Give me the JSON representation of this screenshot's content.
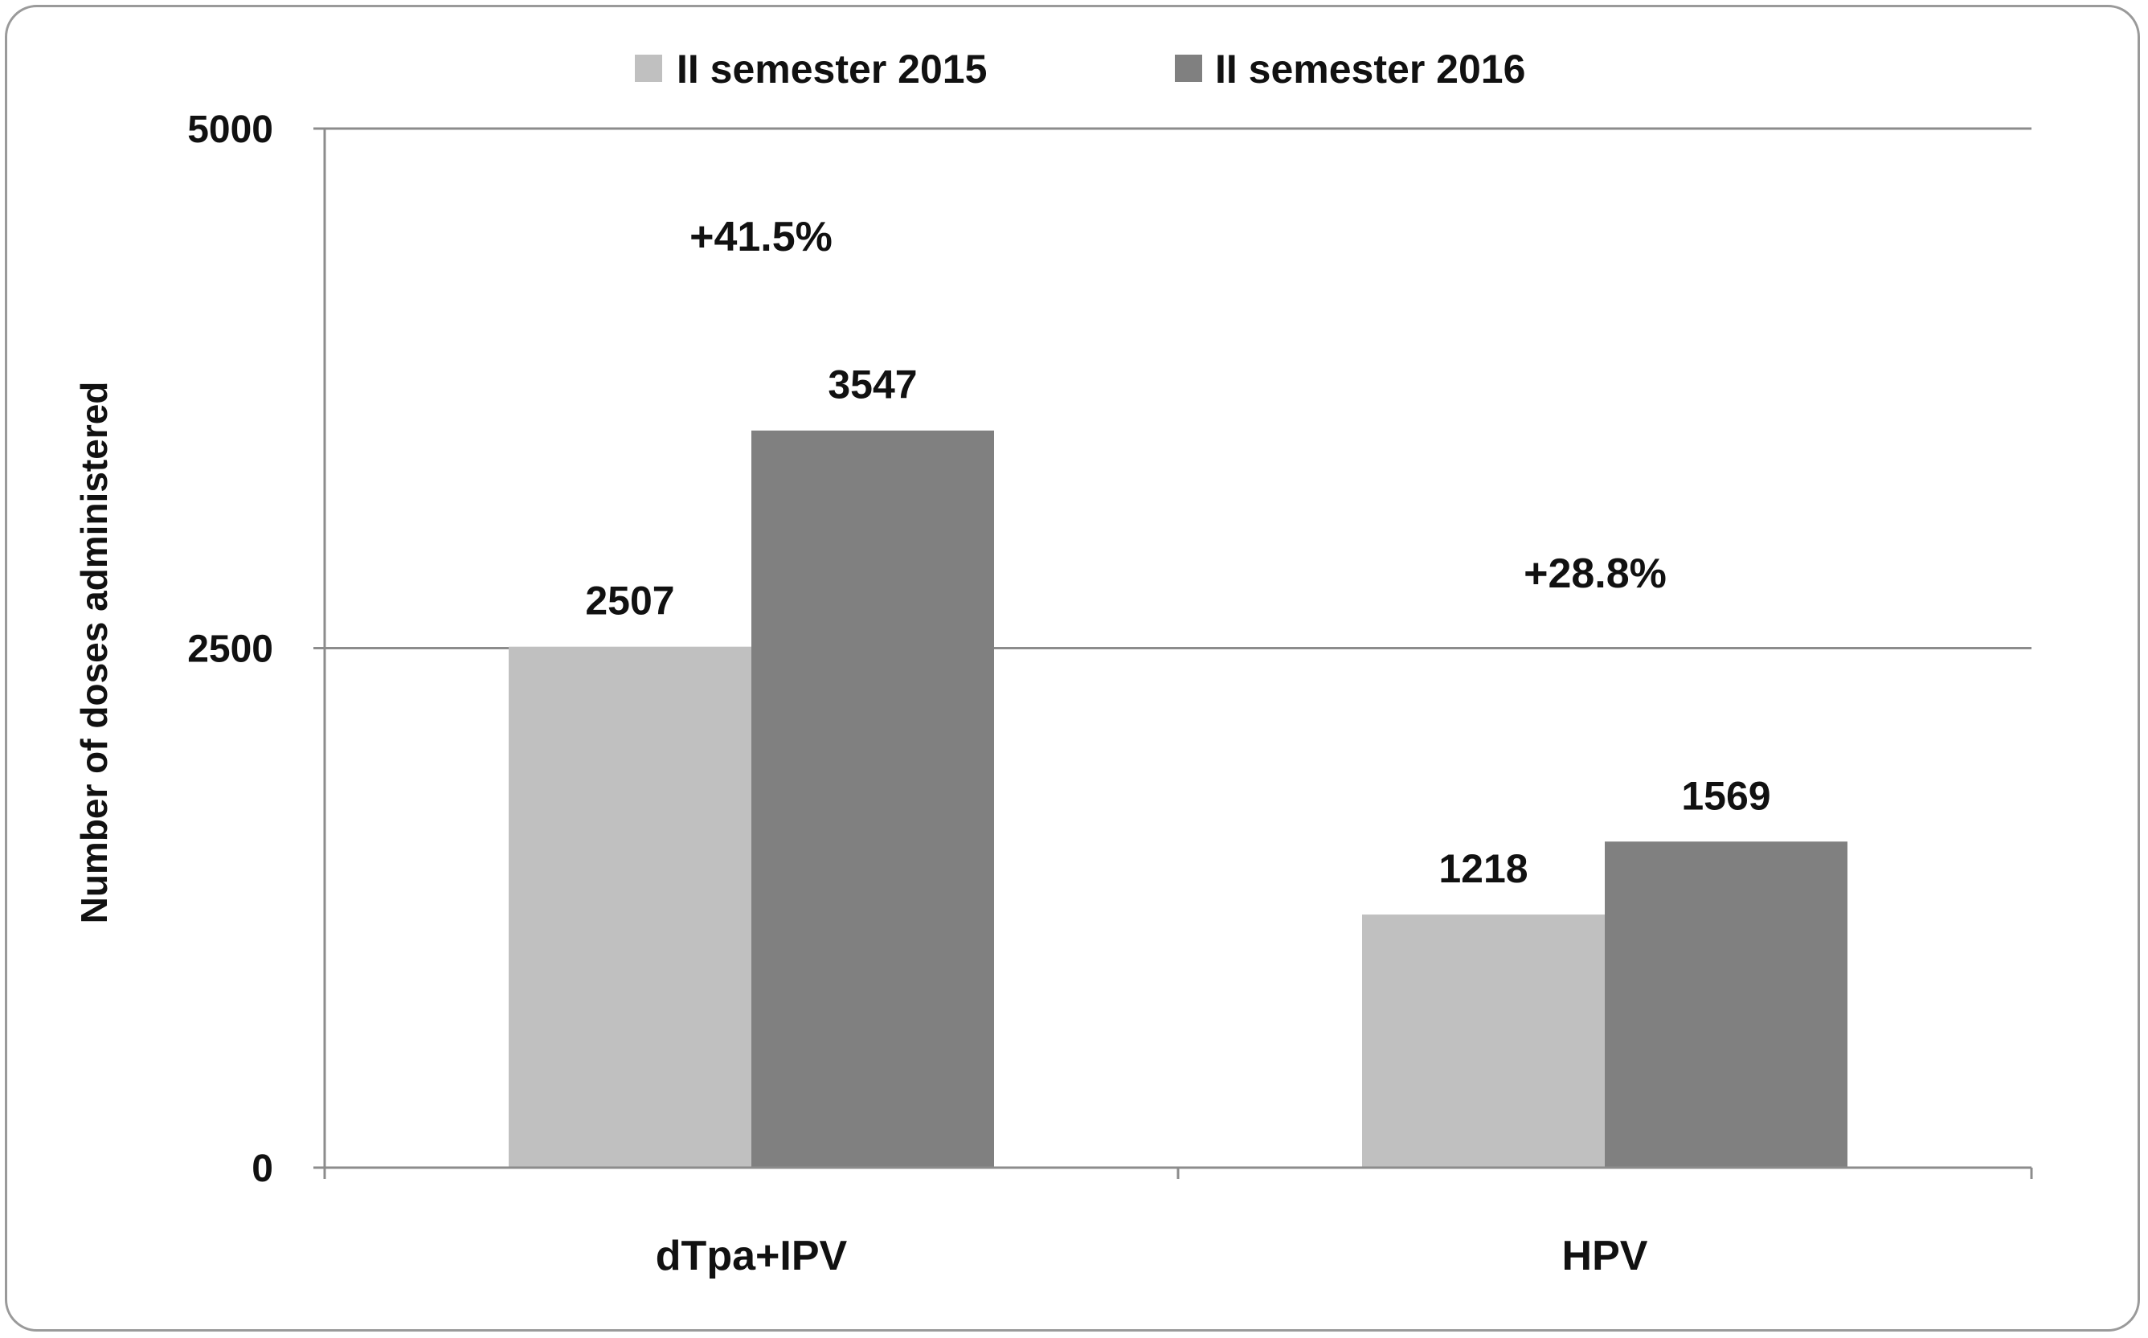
{
  "chart_data": {
    "type": "bar",
    "title": "",
    "xlabel": "",
    "ylabel": "Number of doses administered",
    "ylim": [
      0,
      5000
    ],
    "yticks": [
      0,
      2500,
      5000
    ],
    "grid": true,
    "legend": "top-center",
    "categories": [
      "dTpa+IPV",
      "HPV"
    ],
    "series": [
      {
        "name": "II semester 2015",
        "color": "#c0c0c0",
        "values": [
          2507,
          1218
        ],
        "labels": [
          "2507",
          "1218"
        ]
      },
      {
        "name": "II semester 2016",
        "color": "#808080",
        "values": [
          3547,
          1569
        ],
        "labels": [
          "3547",
          "1569"
        ]
      }
    ],
    "annotations": [
      "+41.5%",
      "+28.8%"
    ]
  }
}
